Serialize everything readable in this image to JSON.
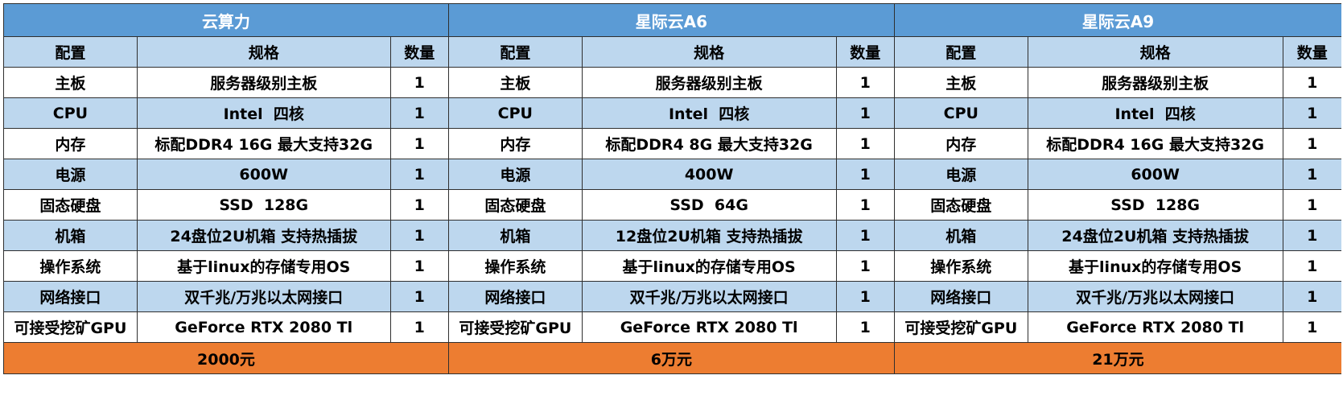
{
  "colors": {
    "title_bg": "#5b9bd5",
    "header_bg": "#bdd7ee",
    "row_alt_bg": "#bdd7ee",
    "row_bg": "#ffffff",
    "price_bg": "#ed7d31"
  },
  "products": [
    {
      "name": "云算力",
      "headers": {
        "config": "配置",
        "spec": "规格",
        "qty": "数量"
      },
      "price": "2000元"
    },
    {
      "name": "星际云A6",
      "headers": {
        "config": "配置",
        "spec": "规格",
        "qty": "数量"
      },
      "price": "6万元"
    },
    {
      "name": "星际云A9",
      "headers": {
        "config": "配置",
        "spec": "规格",
        "qty": "数量"
      },
      "price": "21万元"
    }
  ],
  "rows": [
    {
      "p0": {
        "config": "主板",
        "spec": "服务器级别主板",
        "qty": "1"
      },
      "p1": {
        "config": "主板",
        "spec": "服务器级别主板",
        "qty": "1"
      },
      "p2": {
        "config": "主板",
        "spec": "服务器级别主板",
        "qty": "1"
      }
    },
    {
      "p0": {
        "config": "CPU",
        "spec": "Intel  四核",
        "qty": "1"
      },
      "p1": {
        "config": "CPU",
        "spec": "Intel  四核",
        "qty": "1"
      },
      "p2": {
        "config": "CPU",
        "spec": "Intel  四核",
        "qty": "1"
      }
    },
    {
      "p0": {
        "config": "内存",
        "spec": "标配DDR4 16G 最大支持32G",
        "qty": "1"
      },
      "p1": {
        "config": "内存",
        "spec": "标配DDR4 8G 最大支持32G",
        "qty": "1"
      },
      "p2": {
        "config": "内存",
        "spec": "标配DDR4 16G 最大支持32G",
        "qty": "1"
      }
    },
    {
      "p0": {
        "config": "电源",
        "spec": "600W",
        "qty": "1"
      },
      "p1": {
        "config": "电源",
        "spec": "400W",
        "qty": "1"
      },
      "p2": {
        "config": "电源",
        "spec": "600W",
        "qty": "1"
      }
    },
    {
      "p0": {
        "config": "固态硬盘",
        "spec": "SSD  128G",
        "qty": "1"
      },
      "p1": {
        "config": "固态硬盘",
        "spec": "SSD  64G",
        "qty": "1"
      },
      "p2": {
        "config": "固态硬盘",
        "spec": "SSD  128G",
        "qty": "1"
      }
    },
    {
      "p0": {
        "config": "机箱",
        "spec": "24盘位2U机箱 支持热插拔",
        "qty": "1"
      },
      "p1": {
        "config": "机箱",
        "spec": "12盘位2U机箱 支持热插拔",
        "qty": "1"
      },
      "p2": {
        "config": "机箱",
        "spec": "24盘位2U机箱 支持热插拔",
        "qty": "1"
      }
    },
    {
      "p0": {
        "config": "操作系统",
        "spec": "基于linux的存储专用OS",
        "qty": "1"
      },
      "p1": {
        "config": "操作系统",
        "spec": "基于linux的存储专用OS",
        "qty": "1"
      },
      "p2": {
        "config": "操作系统",
        "spec": "基于linux的存储专用OS",
        "qty": "1"
      }
    },
    {
      "p0": {
        "config": "网络接口",
        "spec": "双千兆/万兆以太网接口",
        "qty": "1"
      },
      "p1": {
        "config": "网络接口",
        "spec": "双千兆/万兆以太网接口",
        "qty": "1"
      },
      "p2": {
        "config": "网络接口",
        "spec": "双千兆/万兆以太网接口",
        "qty": "1"
      }
    },
    {
      "p0": {
        "config": "可接受挖矿GPU",
        "spec": "GeForce RTX 2080 Tl",
        "qty": "1"
      },
      "p1": {
        "config": "可接受挖矿GPU",
        "spec": "GeForce RTX 2080 Tl",
        "qty": "1"
      },
      "p2": {
        "config": "可接受挖矿GPU",
        "spec": "GeForce RTX 2080 Tl",
        "qty": "1"
      }
    }
  ]
}
